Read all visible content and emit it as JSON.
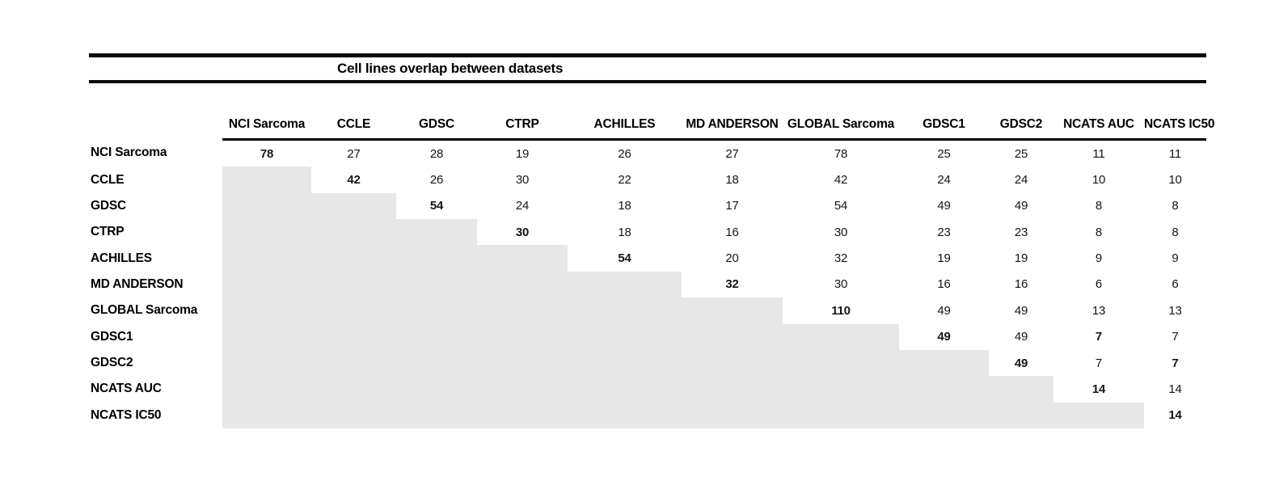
{
  "figure": {
    "title": "Cell lines overlap between datasets"
  },
  "chart_data": {
    "type": "table",
    "title": "Cell lines overlap between datasets",
    "description": "Symmetric overlap-count matrix; only the upper triangle shows values, the lower triangle is shaded gray. Diagonal counts are bold.",
    "shade_color": "#e7e7e7",
    "columns": [
      "NCI Sarcoma",
      "CCLE",
      "GDSC",
      "CTRP",
      "ACHILLES",
      "MD ANDERSON",
      "GLOBAL Sarcoma",
      "GDSC1",
      "GDSC2",
      "NCATS AUC",
      "NCATS IC50"
    ],
    "rows": [
      {
        "label": "NCI Sarcoma",
        "values": [
          "78",
          "27",
          "28",
          "19",
          "26",
          "27",
          "78",
          "25",
          "25",
          "11",
          "11"
        ],
        "bold_cols": [
          0
        ]
      },
      {
        "label": "CCLE",
        "values": [
          null,
          "42",
          "26",
          "30",
          "22",
          "18",
          "42",
          "24",
          "24",
          "10",
          "10"
        ],
        "bold_cols": [
          1
        ]
      },
      {
        "label": "GDSC",
        "values": [
          null,
          null,
          "54",
          "24",
          "18",
          "17",
          "54",
          "49",
          "49",
          "8",
          "8"
        ],
        "bold_cols": [
          2
        ]
      },
      {
        "label": "CTRP",
        "values": [
          null,
          null,
          null,
          "30",
          "18",
          "16",
          "30",
          "23",
          "23",
          "8",
          "8"
        ],
        "bold_cols": [
          3
        ]
      },
      {
        "label": "ACHILLES",
        "values": [
          null,
          null,
          null,
          null,
          "54",
          "20",
          "32",
          "19",
          "19",
          "9",
          "9"
        ],
        "bold_cols": [
          4
        ]
      },
      {
        "label": "MD ANDERSON",
        "values": [
          null,
          null,
          null,
          null,
          null,
          "32",
          "30",
          "16",
          "16",
          "6",
          "6"
        ],
        "bold_cols": [
          5
        ]
      },
      {
        "label": "GLOBAL Sarcoma",
        "values": [
          null,
          null,
          null,
          null,
          null,
          null,
          "110",
          "49",
          "49",
          "13",
          "13"
        ],
        "bold_cols": [
          6
        ]
      },
      {
        "label": "GDSC1",
        "values": [
          null,
          null,
          null,
          null,
          null,
          null,
          null,
          "49",
          "49",
          "7",
          "7"
        ],
        "bold_cols": [
          7,
          9
        ]
      },
      {
        "label": "GDSC2",
        "values": [
          null,
          null,
          null,
          null,
          null,
          null,
          null,
          null,
          "49",
          "7",
          "7"
        ],
        "bold_cols": [
          8,
          10
        ]
      },
      {
        "label": "NCATS AUC",
        "values": [
          null,
          null,
          null,
          null,
          null,
          null,
          null,
          null,
          null,
          "14",
          "14"
        ],
        "bold_cols": [
          9
        ]
      },
      {
        "label": "NCATS IC50",
        "values": [
          null,
          null,
          null,
          null,
          null,
          null,
          null,
          null,
          null,
          null,
          "14"
        ],
        "bold_cols": [
          10
        ]
      }
    ]
  }
}
